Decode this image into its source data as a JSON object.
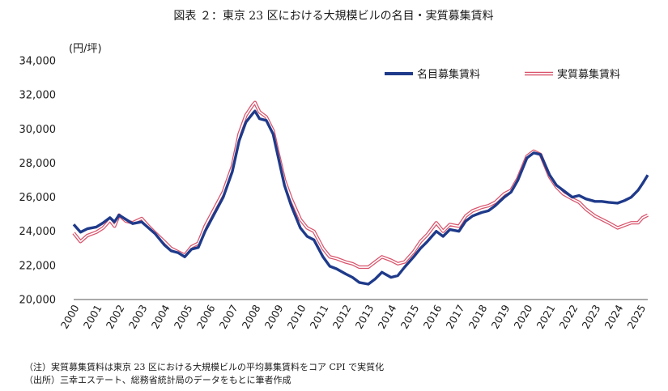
{
  "chart_data": {
    "type": "line",
    "title": "図表 ２：東京 23 区における大規模ビルの名目・実質募集賃料",
    "ylabel": "(円/坪)",
    "xlabel": "",
    "ylim": [
      20000,
      34000
    ],
    "yticks": [
      "20,000",
      "22,000",
      "24,000",
      "26,000",
      "28,000",
      "30,000",
      "32,000",
      "34,000"
    ],
    "ytick_values": [
      20000,
      22000,
      24000,
      26000,
      28000,
      30000,
      32000,
      34000
    ],
    "xticks": [
      "2000",
      "2001",
      "2002",
      "2003",
      "2004",
      "2005",
      "2006",
      "2007",
      "2008",
      "2009",
      "2010",
      "2011",
      "2012",
      "2013",
      "2014",
      "2015",
      "2016",
      "2017",
      "2018",
      "2019",
      "2020",
      "2021",
      "2022",
      "2023",
      "2024",
      "2025"
    ],
    "xlim": [
      2000.0,
      2025.33
    ],
    "grid": false,
    "legend": "top-right",
    "series": [
      {
        "name": "名目募集賃料",
        "color": "#1f3a8a",
        "style": "solid-thick",
        "points": [
          [
            2000.0,
            24400
          ],
          [
            2000.3,
            23950
          ],
          [
            2000.6,
            24150
          ],
          [
            2001.0,
            24250
          ],
          [
            2001.3,
            24500
          ],
          [
            2001.6,
            24800
          ],
          [
            2001.8,
            24550
          ],
          [
            2002.0,
            24950
          ],
          [
            2002.3,
            24700
          ],
          [
            2002.6,
            24450
          ],
          [
            2003.0,
            24550
          ],
          [
            2003.3,
            24200
          ],
          [
            2003.6,
            23850
          ],
          [
            2004.0,
            23200
          ],
          [
            2004.3,
            22850
          ],
          [
            2004.6,
            22750
          ],
          [
            2004.9,
            22500
          ],
          [
            2005.2,
            22950
          ],
          [
            2005.5,
            23050
          ],
          [
            2005.8,
            24000
          ],
          [
            2006.2,
            25000
          ],
          [
            2006.6,
            26000
          ],
          [
            2007.0,
            27500
          ],
          [
            2007.3,
            29300
          ],
          [
            2007.6,
            30400
          ],
          [
            2007.9,
            30900
          ],
          [
            2008.0,
            31050
          ],
          [
            2008.2,
            30600
          ],
          [
            2008.5,
            30500
          ],
          [
            2008.8,
            29700
          ],
          [
            2009.0,
            28500
          ],
          [
            2009.3,
            26700
          ],
          [
            2009.6,
            25500
          ],
          [
            2010.0,
            24200
          ],
          [
            2010.3,
            23700
          ],
          [
            2010.6,
            23500
          ],
          [
            2011.0,
            22500
          ],
          [
            2011.3,
            21950
          ],
          [
            2011.6,
            21800
          ],
          [
            2012.0,
            21500
          ],
          [
            2012.3,
            21300
          ],
          [
            2012.6,
            21000
          ],
          [
            2013.0,
            20900
          ],
          [
            2013.3,
            21200
          ],
          [
            2013.6,
            21600
          ],
          [
            2014.0,
            21300
          ],
          [
            2014.3,
            21400
          ],
          [
            2014.6,
            21900
          ],
          [
            2015.0,
            22500
          ],
          [
            2015.3,
            23000
          ],
          [
            2015.6,
            23400
          ],
          [
            2016.0,
            24000
          ],
          [
            2016.3,
            23700
          ],
          [
            2016.6,
            24100
          ],
          [
            2017.0,
            24000
          ],
          [
            2017.3,
            24600
          ],
          [
            2017.6,
            24900
          ],
          [
            2018.0,
            25100
          ],
          [
            2018.3,
            25200
          ],
          [
            2018.6,
            25500
          ],
          [
            2019.0,
            26000
          ],
          [
            2019.3,
            26300
          ],
          [
            2019.6,
            27000
          ],
          [
            2020.0,
            28300
          ],
          [
            2020.3,
            28600
          ],
          [
            2020.6,
            28500
          ],
          [
            2021.0,
            27300
          ],
          [
            2021.3,
            26700
          ],
          [
            2021.6,
            26400
          ],
          [
            2022.0,
            26000
          ],
          [
            2022.3,
            26100
          ],
          [
            2022.6,
            25900
          ],
          [
            2023.0,
            25750
          ],
          [
            2023.3,
            25750
          ],
          [
            2023.6,
            25700
          ],
          [
            2024.0,
            25650
          ],
          [
            2024.3,
            25800
          ],
          [
            2024.6,
            26000
          ],
          [
            2024.9,
            26400
          ],
          [
            2025.1,
            26800
          ],
          [
            2025.33,
            27300
          ]
        ]
      },
      {
        "name": "実質募集賃料",
        "color": "#d9536b",
        "style": "double-outline",
        "points": [
          [
            2000.0,
            23900
          ],
          [
            2000.3,
            23400
          ],
          [
            2000.6,
            23750
          ],
          [
            2001.0,
            23950
          ],
          [
            2001.3,
            24200
          ],
          [
            2001.6,
            24650
          ],
          [
            2001.8,
            24300
          ],
          [
            2002.0,
            24950
          ],
          [
            2002.3,
            24600
          ],
          [
            2002.6,
            24500
          ],
          [
            2003.0,
            24750
          ],
          [
            2003.3,
            24300
          ],
          [
            2003.6,
            23900
          ],
          [
            2004.0,
            23400
          ],
          [
            2004.3,
            23000
          ],
          [
            2004.6,
            22800
          ],
          [
            2004.9,
            22600
          ],
          [
            2005.2,
            23100
          ],
          [
            2005.5,
            23300
          ],
          [
            2005.8,
            24300
          ],
          [
            2006.2,
            25300
          ],
          [
            2006.6,
            26300
          ],
          [
            2007.0,
            27800
          ],
          [
            2007.3,
            29700
          ],
          [
            2007.6,
            30800
          ],
          [
            2007.9,
            31400
          ],
          [
            2008.0,
            31550
          ],
          [
            2008.2,
            31000
          ],
          [
            2008.5,
            30700
          ],
          [
            2008.8,
            29900
          ],
          [
            2009.0,
            28700
          ],
          [
            2009.3,
            27000
          ],
          [
            2009.6,
            25900
          ],
          [
            2010.0,
            24700
          ],
          [
            2010.3,
            24200
          ],
          [
            2010.6,
            24000
          ],
          [
            2011.0,
            23000
          ],
          [
            2011.3,
            22500
          ],
          [
            2011.6,
            22400
          ],
          [
            2012.0,
            22200
          ],
          [
            2012.3,
            22100
          ],
          [
            2012.6,
            21900
          ],
          [
            2013.0,
            21900
          ],
          [
            2013.3,
            22200
          ],
          [
            2013.6,
            22500
          ],
          [
            2014.0,
            22300
          ],
          [
            2014.3,
            22100
          ],
          [
            2014.6,
            22200
          ],
          [
            2015.0,
            22800
          ],
          [
            2015.3,
            23400
          ],
          [
            2015.6,
            23800
          ],
          [
            2016.0,
            24500
          ],
          [
            2016.3,
            24000
          ],
          [
            2016.6,
            24400
          ],
          [
            2017.0,
            24300
          ],
          [
            2017.3,
            24900
          ],
          [
            2017.6,
            25200
          ],
          [
            2018.0,
            25400
          ],
          [
            2018.3,
            25500
          ],
          [
            2018.6,
            25700
          ],
          [
            2019.0,
            26200
          ],
          [
            2019.3,
            26400
          ],
          [
            2019.6,
            27100
          ],
          [
            2020.0,
            28400
          ],
          [
            2020.3,
            28700
          ],
          [
            2020.6,
            28500
          ],
          [
            2021.0,
            27200
          ],
          [
            2021.3,
            26600
          ],
          [
            2021.6,
            26200
          ],
          [
            2022.0,
            25900
          ],
          [
            2022.3,
            25700
          ],
          [
            2022.6,
            25300
          ],
          [
            2023.0,
            24900
          ],
          [
            2023.3,
            24700
          ],
          [
            2023.6,
            24500
          ],
          [
            2024.0,
            24200
          ],
          [
            2024.3,
            24350
          ],
          [
            2024.6,
            24500
          ],
          [
            2024.9,
            24500
          ],
          [
            2025.1,
            24800
          ],
          [
            2025.33,
            24950
          ]
        ]
      }
    ]
  },
  "notes": [
    "（注）実質募集賃料は東京 23 区における大規模ビルの平均募集賃料をコア CPI で実質化",
    "（出所）三幸エステート、総務省統計局のデータをもとに筆者作成"
  ]
}
